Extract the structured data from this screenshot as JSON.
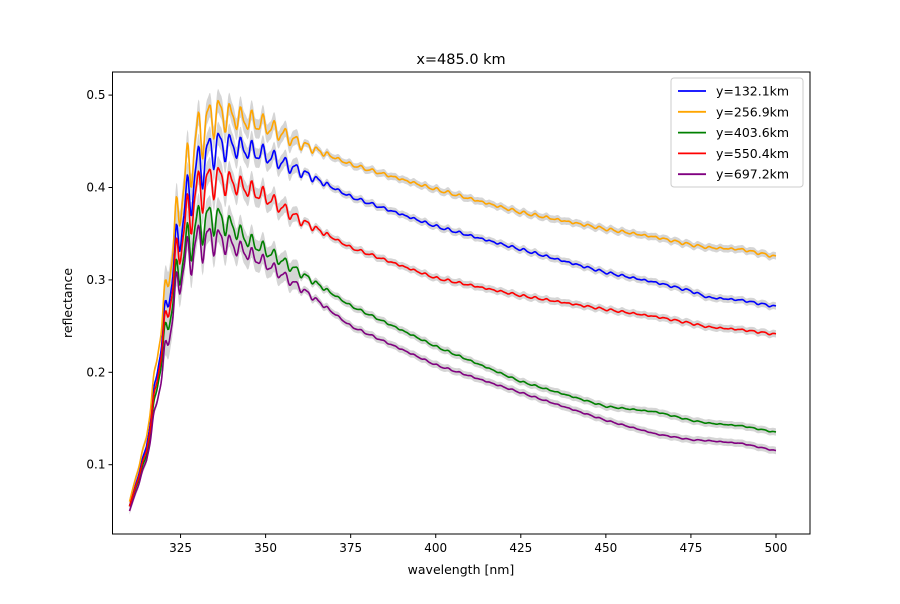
{
  "chart_data": {
    "type": "line",
    "title": "x=485.0 km",
    "xlabel": "wavelength [nm]",
    "ylabel": "reflectance",
    "xlim": [
      305,
      510
    ],
    "ylim": [
      0.025,
      0.525
    ],
    "xticks": [
      325,
      350,
      375,
      400,
      425,
      450,
      475,
      500
    ],
    "xtick_labels": [
      "325",
      "350",
      "375",
      "400",
      "425",
      "450",
      "475",
      "500"
    ],
    "yticks": [
      0.1,
      0.2,
      0.3,
      0.4,
      0.5
    ],
    "ytick_labels": [
      "0.1",
      "0.2",
      "0.3",
      "0.4",
      "0.5"
    ],
    "grid": false,
    "legend_position": "top-right",
    "uncertainty_band_color": "#d3d3d3",
    "series": [
      {
        "name": "y=132.1km",
        "color": "#0000ff",
        "x": [
          310,
          315,
          320,
          325,
          330,
          335,
          340,
          345,
          350,
          360,
          375,
          400,
          425,
          450,
          465,
          475,
          480,
          490,
          500
        ],
        "values": [
          0.055,
          0.12,
          0.25,
          0.36,
          0.42,
          0.445,
          0.445,
          0.44,
          0.435,
          0.418,
          0.39,
          0.358,
          0.333,
          0.308,
          0.297,
          0.288,
          0.281,
          0.278,
          0.271
        ]
      },
      {
        "name": "y=256.9km",
        "color": "#ffa500",
        "x": [
          310,
          315,
          320,
          325,
          330,
          335,
          340,
          345,
          350,
          360,
          375,
          400,
          425,
          450,
          465,
          475,
          480,
          490,
          500
        ],
        "values": [
          0.06,
          0.13,
          0.27,
          0.39,
          0.455,
          0.48,
          0.477,
          0.472,
          0.467,
          0.448,
          0.425,
          0.398,
          0.373,
          0.355,
          0.346,
          0.338,
          0.335,
          0.333,
          0.325
        ]
      },
      {
        "name": "y=403.6km",
        "color": "#008000",
        "x": [
          310,
          315,
          320,
          325,
          330,
          335,
          340,
          345,
          350,
          360,
          375,
          400,
          425,
          450,
          465,
          475,
          480,
          490,
          500
        ],
        "values": [
          0.055,
          0.11,
          0.23,
          0.32,
          0.36,
          0.368,
          0.358,
          0.342,
          0.332,
          0.308,
          0.272,
          0.228,
          0.19,
          0.163,
          0.157,
          0.148,
          0.145,
          0.142,
          0.135
        ]
      },
      {
        "name": "y=550.4km",
        "color": "#ff0000",
        "x": [
          310,
          315,
          320,
          325,
          330,
          335,
          340,
          345,
          350,
          360,
          375,
          400,
          425,
          450,
          465,
          475,
          480,
          490,
          500
        ],
        "values": [
          0.055,
          0.115,
          0.24,
          0.345,
          0.395,
          0.41,
          0.405,
          0.398,
          0.39,
          0.365,
          0.335,
          0.302,
          0.283,
          0.268,
          0.26,
          0.253,
          0.249,
          0.246,
          0.241
        ]
      },
      {
        "name": "y=697.2km",
        "color": "#800080",
        "x": [
          310,
          315,
          320,
          325,
          330,
          335,
          340,
          345,
          350,
          360,
          375,
          400,
          425,
          450,
          465,
          475,
          480,
          490,
          500
        ],
        "values": [
          0.05,
          0.105,
          0.21,
          0.31,
          0.34,
          0.345,
          0.338,
          0.328,
          0.318,
          0.292,
          0.25,
          0.208,
          0.178,
          0.148,
          0.133,
          0.127,
          0.126,
          0.123,
          0.115
        ]
      }
    ]
  }
}
